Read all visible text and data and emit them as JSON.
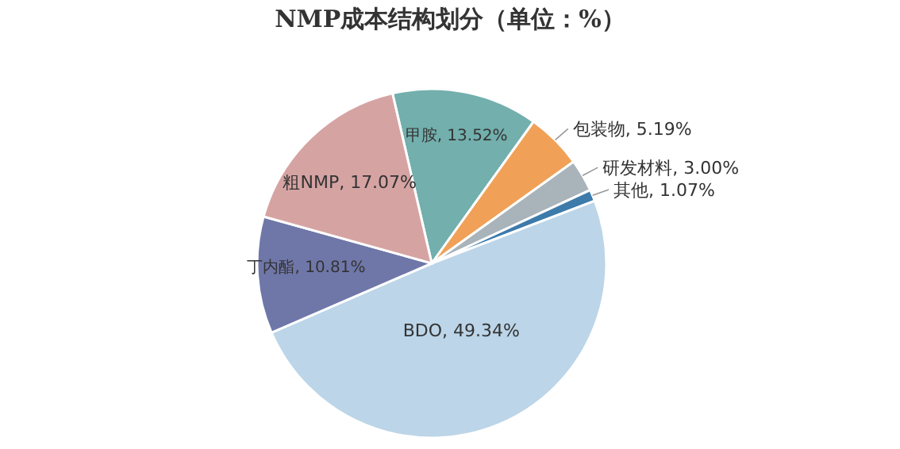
{
  "chart_data": {
    "type": "pie",
    "title": "NMP成本结构划分（单位：%）",
    "categories": [
      "甲胺",
      "包装物",
      "研发材料",
      "其他",
      "BDO",
      "丁内酯",
      "粗NMP"
    ],
    "values": [
      13.52,
      5.19,
      3.0,
      1.07,
      49.34,
      10.81,
      17.07
    ],
    "value_labels": [
      "13.52%",
      "5.19%",
      "3.00%",
      "1.07%",
      "49.34%",
      "10.81%",
      "17.07%"
    ],
    "colors": [
      "#72afad",
      "#f0a157",
      "#a9b3ba",
      "#3d7bab",
      "#bcd5e8",
      "#6f77a9",
      "#d6a3a3"
    ],
    "legend": false
  }
}
